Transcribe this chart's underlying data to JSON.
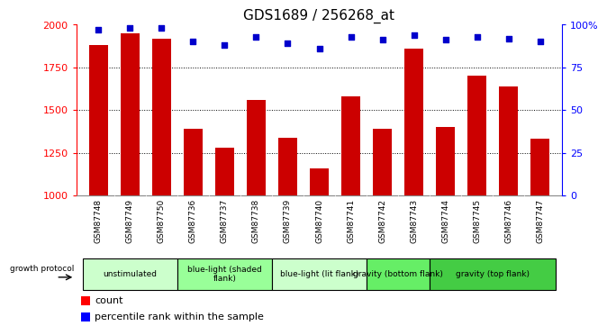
{
  "title": "GDS1689 / 256268_at",
  "samples": [
    "GSM87748",
    "GSM87749",
    "GSM87750",
    "GSM87736",
    "GSM87737",
    "GSM87738",
    "GSM87739",
    "GSM87740",
    "GSM87741",
    "GSM87742",
    "GSM87743",
    "GSM87744",
    "GSM87745",
    "GSM87746",
    "GSM87747"
  ],
  "counts": [
    1880,
    1950,
    1920,
    1390,
    1280,
    1560,
    1340,
    1160,
    1580,
    1390,
    1860,
    1400,
    1700,
    1640,
    1330
  ],
  "percentile": [
    97,
    98,
    98,
    90,
    88,
    93,
    89,
    86,
    93,
    91,
    94,
    91,
    93,
    92,
    90
  ],
  "groups": [
    {
      "label": "unstimulated",
      "start": 0,
      "end": 3,
      "color": "#ccffcc"
    },
    {
      "label": "blue-light (shaded\nflank)",
      "start": 3,
      "end": 6,
      "color": "#99ff99"
    },
    {
      "label": "blue-light (lit flank)",
      "start": 6,
      "end": 9,
      "color": "#ccffcc"
    },
    {
      "label": "gravity (bottom flank)",
      "start": 9,
      "end": 11,
      "color": "#66ee66"
    },
    {
      "label": "gravity (top flank)",
      "start": 11,
      "end": 15,
      "color": "#44cc44"
    }
  ],
  "bar_color": "#cc0000",
  "dot_color": "#0000cc",
  "ylim_left": [
    1000,
    2000
  ],
  "ylim_right": [
    0,
    100
  ],
  "yticks_left": [
    1000,
    1250,
    1500,
    1750,
    2000
  ],
  "yticks_right": [
    0,
    25,
    50,
    75,
    100
  ],
  "ylabel_right_ticks": [
    "0",
    "25",
    "50",
    "75",
    "100%"
  ],
  "plot_bg": "#ffffff",
  "xtick_bg": "#c8c8c8",
  "fig_bg": "#ffffff"
}
